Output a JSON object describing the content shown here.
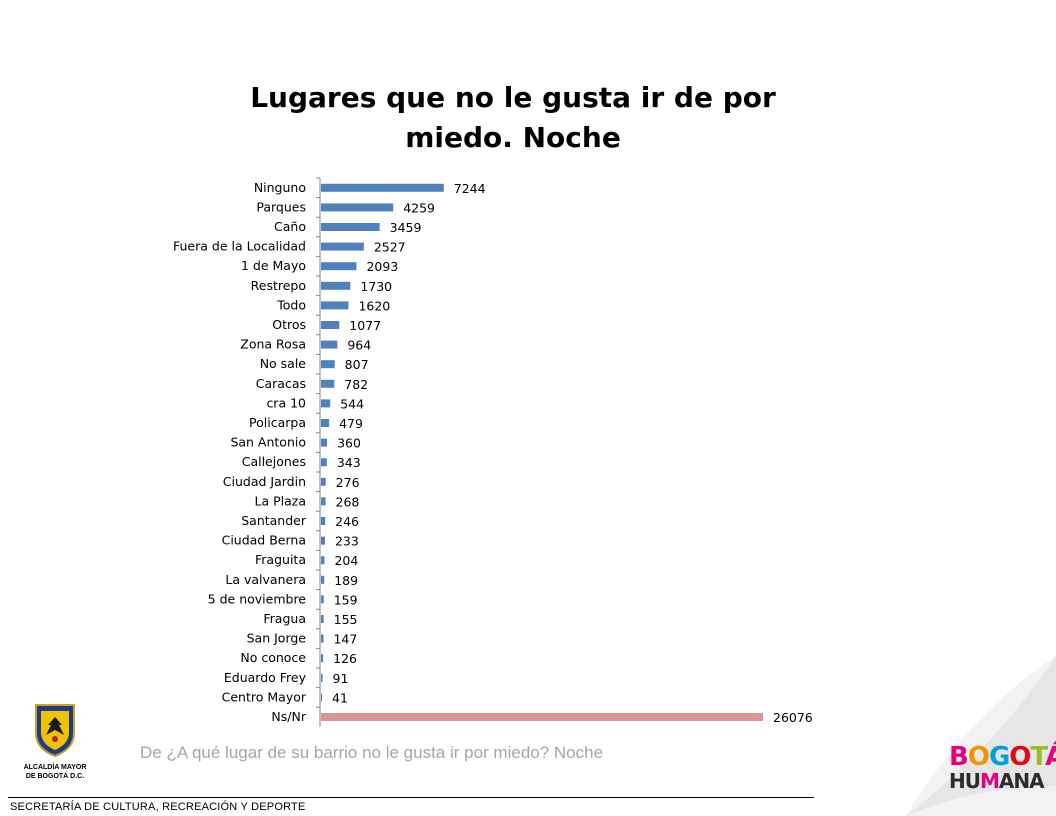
{
  "title_line1": "Lugares que no le gusta ir de por",
  "title_line2": "miedo. Noche",
  "subtitle": "De ¿A qué lugar de su barrio no le gusta ir por miedo? Noche",
  "footer": "SECRETARÍA DE CULTURA, RECREACIÓN Y DEPORTE",
  "logo_left": {
    "line1": "ALCALDÍA MAYOR",
    "line2": "DE BOGOTÁ D.C."
  },
  "logo_right": {
    "line1": "BOGOTÁ",
    "line2": "HUMANA"
  },
  "colors": {
    "bar": "#4f81bd",
    "bar_highlight": "#d99594"
  },
  "chart_data": {
    "type": "bar",
    "orientation": "horizontal",
    "title": "Lugares que no le gusta ir de por miedo. Noche",
    "categories": [
      "Ninguno",
      "Parques",
      "Caño",
      "Fuera de la Localidad",
      "1 de Mayo",
      "Restrepo",
      "Todo",
      "Otros",
      "Zona Rosa",
      "No sale",
      "Caracas",
      "cra 10",
      "Policarpa",
      "San Antonio",
      "Callejones",
      "Ciudad Jardin",
      "La Plaza",
      "Santander",
      "Ciudad Berna",
      "Fraguita",
      "La valvanera",
      "5 de noviembre",
      "Fragua",
      "San Jorge",
      "No conoce",
      "Eduardo Frey",
      "Centro Mayor",
      "Ns/Nr"
    ],
    "values": [
      7244,
      4259,
      3459,
      2527,
      2093,
      1730,
      1620,
      1077,
      964,
      807,
      782,
      544,
      479,
      360,
      343,
      276,
      268,
      246,
      233,
      204,
      189,
      159,
      155,
      147,
      126,
      91,
      41,
      26076
    ],
    "highlight": [
      "Ns/Nr"
    ],
    "grid": false,
    "legend": "none"
  }
}
